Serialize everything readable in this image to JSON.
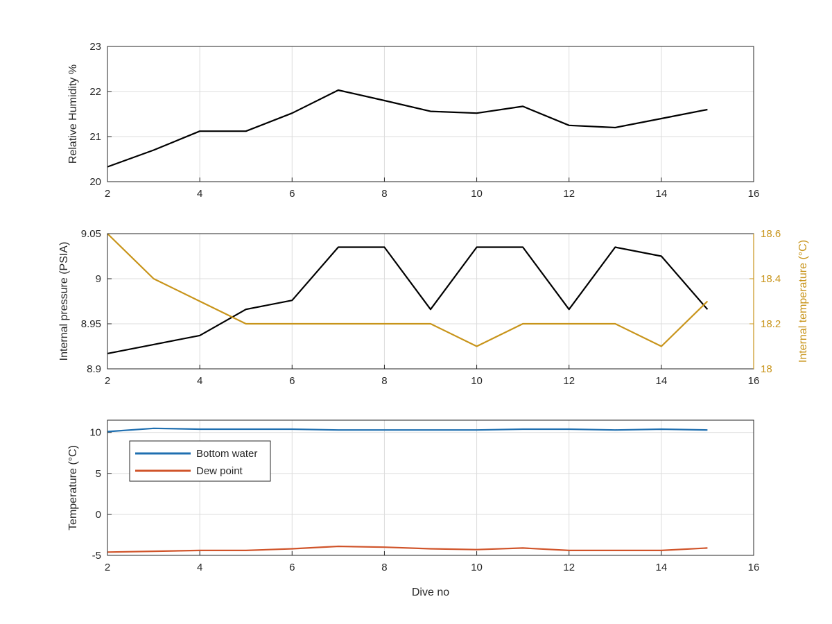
{
  "chart_data": [
    {
      "type": "line",
      "xlabel": "",
      "ylabel": "Relative Humidity %",
      "xlim": [
        2,
        16
      ],
      "ylim": [
        20,
        23
      ],
      "xticks": [
        2,
        4,
        6,
        8,
        10,
        12,
        14,
        16
      ],
      "yticks": [
        20,
        21,
        22,
        23
      ],
      "grid": true,
      "series": [
        {
          "color": "#000000",
          "x": [
            2,
            3,
            4,
            5,
            6,
            7,
            8,
            9,
            10,
            11,
            12,
            13,
            14,
            15
          ],
          "values": [
            20.33,
            20.7,
            21.12,
            21.12,
            21.52,
            22.03,
            21.8,
            21.56,
            21.52,
            21.67,
            21.25,
            21.2,
            21.4,
            21.6
          ]
        }
      ]
    },
    {
      "type": "line",
      "xlabel": "",
      "ylabel": "Internal pressure (PSIA)",
      "ylabel_right": "Internal temperature (°C)",
      "xlim": [
        2,
        16
      ],
      "ylim": [
        8.9,
        9.05
      ],
      "ylim_right": [
        18,
        18.6
      ],
      "xticks": [
        2,
        4,
        6,
        8,
        10,
        12,
        14,
        16
      ],
      "yticks": [
        "8.9",
        "8.95",
        "9",
        "9.05"
      ],
      "yticks_right": [
        "18",
        "18.2",
        "18.4",
        "18.6"
      ],
      "grid": true,
      "series": [
        {
          "axis": "left",
          "color": "#000000",
          "x": [
            2,
            3,
            4,
            5,
            6,
            7,
            8,
            9,
            10,
            11,
            12,
            13,
            14,
            15
          ],
          "values": [
            8.917,
            8.927,
            8.937,
            8.966,
            8.976,
            9.035,
            9.035,
            8.966,
            9.035,
            9.035,
            8.966,
            9.035,
            9.025,
            8.966
          ]
        },
        {
          "axis": "right",
          "color": "#c8941a",
          "x": [
            2,
            3,
            4,
            5,
            6,
            7,
            8,
            9,
            10,
            11,
            12,
            13,
            14,
            15
          ],
          "values": [
            18.6,
            18.4,
            18.3,
            18.2,
            18.2,
            18.2,
            18.2,
            18.2,
            18.1,
            18.2,
            18.2,
            18.2,
            18.1,
            18.3
          ]
        }
      ]
    },
    {
      "type": "line",
      "xlabel": "Dive no",
      "ylabel": "Temperature (°C)",
      "xlim": [
        2,
        16
      ],
      "ylim": [
        -5,
        11.5
      ],
      "xticks": [
        2,
        4,
        6,
        8,
        10,
        12,
        14,
        16
      ],
      "yticks": [
        "-5",
        "0",
        "5",
        "10"
      ],
      "grid": true,
      "legend": {
        "placement": "top-left"
      },
      "series": [
        {
          "name": "Bottom water",
          "color": "#1f6fb0",
          "x": [
            2,
            3,
            4,
            5,
            6,
            7,
            8,
            9,
            10,
            11,
            12,
            13,
            14,
            15
          ],
          "values": [
            10.1,
            10.5,
            10.4,
            10.4,
            10.4,
            10.3,
            10.3,
            10.3,
            10.3,
            10.4,
            10.4,
            10.3,
            10.4,
            10.3
          ]
        },
        {
          "name": "Dew point",
          "color": "#d0542a",
          "x": [
            2,
            3,
            4,
            5,
            6,
            7,
            8,
            9,
            10,
            11,
            12,
            13,
            14,
            15
          ],
          "values": [
            -4.6,
            -4.5,
            -4.4,
            -4.4,
            -4.2,
            -3.9,
            -4.0,
            -4.2,
            -4.3,
            -4.1,
            -4.4,
            -4.4,
            -4.4,
            -4.1
          ]
        }
      ]
    }
  ]
}
